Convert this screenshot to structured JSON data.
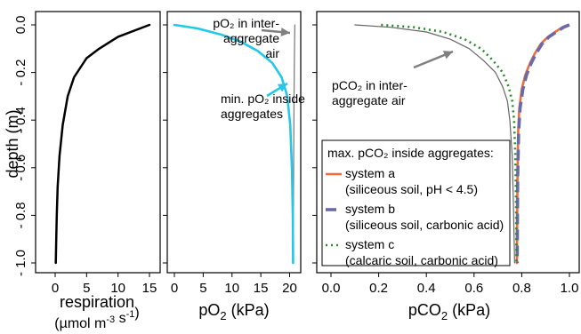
{
  "chart_data": [
    {
      "id": "respiration",
      "type": "line",
      "xlabel": "respiration",
      "xunit": "(µmol m",
      "xunit_exp1": "-3",
      "xunit_mid": " s",
      "xunit_exp2": "-1",
      "xunit_close": ")",
      "ylabel": "depth (m)",
      "xlim": [
        0,
        15
      ],
      "ylim": [
        0,
        1
      ],
      "xticks": [
        0,
        5,
        10,
        15
      ],
      "yticks": [
        0,
        0.2,
        0.4,
        0.6,
        0.8,
        1.0
      ],
      "ytick_labels": [
        "0.0",
        "- 0.2",
        "- 0.4",
        "- 0.6",
        "- 0.8",
        "- 1.0"
      ],
      "series": [
        {
          "color": "#000000",
          "x": [
            15,
            10,
            7,
            5,
            3,
            2,
            1.2,
            0.7,
            0.4,
            0.25,
            0.15,
            0.1
          ],
          "y": [
            0,
            0.05,
            0.1,
            0.14,
            0.22,
            0.3,
            0.42,
            0.55,
            0.68,
            0.8,
            0.92,
            1.0
          ]
        }
      ]
    },
    {
      "id": "po2",
      "type": "line",
      "xlabel": "pO",
      "xlabel_sub": "2",
      "xlabel_unit": " (kPa)",
      "xlim": [
        0,
        21
      ],
      "ylim": [
        0,
        1
      ],
      "xticks": [
        0,
        5,
        10,
        15,
        20
      ],
      "annotations": [
        {
          "lines": [
            "pO₂ in inter-",
            "aggregate",
            "air"
          ]
        },
        {
          "lines": [
            "min. pO₂ inside",
            "aggregates"
          ]
        }
      ],
      "series": [
        {
          "color": "#808080",
          "x": [
            20.9,
            20.85,
            20.8,
            20.75,
            20.7,
            20.65,
            20.62
          ],
          "y": [
            0,
            0.1,
            0.2,
            0.35,
            0.55,
            0.8,
            1.0
          ]
        },
        {
          "color": "#22c7ea",
          "x": [
            0,
            4,
            8,
            11.5,
            14.5,
            17,
            18.6,
            19.6,
            20.1,
            20.4,
            20.55,
            20.6
          ],
          "y": [
            0,
            0.015,
            0.04,
            0.07,
            0.11,
            0.16,
            0.22,
            0.3,
            0.42,
            0.6,
            0.8,
            1.0
          ]
        }
      ]
    },
    {
      "id": "pco2",
      "type": "line",
      "xlabel": "pCO",
      "xlabel_sub": "2",
      "xlabel_unit": " (kPa)",
      "xlim": [
        0,
        1
      ],
      "ylim": [
        0,
        1
      ],
      "xticks": [
        0,
        0.2,
        0.4,
        0.6,
        0.8,
        1.0
      ],
      "xtick_labels": [
        "0.0",
        "0.2",
        "0.4",
        "0.6",
        "0.8",
        "1.0"
      ],
      "annotations": [
        {
          "lines": [
            "pCO₂ in inter-",
            "aggregate air"
          ]
        }
      ],
      "legend": {
        "title": "max. pCO₂ inside aggregates:",
        "items": [
          {
            "label": "system a",
            "note": "(siliceous soil, pH < 4.5)"
          },
          {
            "label": "system b",
            "note": "(siliceous soil, carbonic acid)"
          },
          {
            "label": "system c",
            "note": "(calcaric soil, carbonic acid)"
          }
        ]
      },
      "series": [
        {
          "key": "inter",
          "color": "#666666",
          "x": [
            0.1,
            0.25,
            0.4,
            0.5,
            0.58,
            0.64,
            0.69,
            0.72,
            0.74,
            0.75,
            0.76,
            0.765,
            0.77
          ],
          "y": [
            0,
            0.01,
            0.03,
            0.06,
            0.1,
            0.15,
            0.2,
            0.26,
            0.32,
            0.4,
            0.55,
            0.75,
            1.0
          ]
        },
        {
          "key": "a",
          "color": "#f26b3a",
          "dash": "",
          "x": [
            0.995,
            0.97,
            0.94,
            0.91,
            0.88,
            0.855,
            0.835,
            0.815,
            0.8,
            0.79,
            0.785,
            0.782,
            0.78
          ],
          "y": [
            0,
            0.01,
            0.03,
            0.05,
            0.08,
            0.12,
            0.16,
            0.21,
            0.27,
            0.35,
            0.45,
            0.65,
            1.0
          ]
        },
        {
          "key": "b",
          "color": "#6a6aa8",
          "dash": "12 6",
          "x": [
            1.0,
            0.975,
            0.945,
            0.915,
            0.885,
            0.86,
            0.84,
            0.82,
            0.805,
            0.793,
            0.787,
            0.783,
            0.781
          ],
          "y": [
            0,
            0.01,
            0.03,
            0.05,
            0.08,
            0.12,
            0.16,
            0.21,
            0.27,
            0.35,
            0.45,
            0.65,
            1.0
          ]
        },
        {
          "key": "c",
          "color": "#2a8a2a",
          "dash": "2 4",
          "x": [
            0.21,
            0.35,
            0.47,
            0.56,
            0.63,
            0.68,
            0.72,
            0.745,
            0.76,
            0.768,
            0.773,
            0.776,
            0.778
          ],
          "y": [
            0,
            0.01,
            0.03,
            0.06,
            0.1,
            0.15,
            0.2,
            0.26,
            0.32,
            0.4,
            0.55,
            0.75,
            1.0
          ]
        }
      ]
    }
  ]
}
